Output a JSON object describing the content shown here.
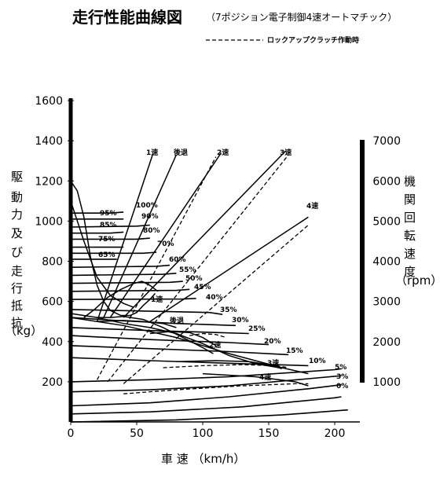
{
  "chart_data": {
    "type": "line",
    "title": "走行性能曲線図",
    "subtitle": "（7ポジション電子制御4速オートマチック）",
    "legend": {
      "dashed_label": "ロックアップクラッチ作動時",
      "position": "top-right"
    },
    "xlabel": "車 速 （km/h）",
    "ylabel_left": [
      "駆",
      "動",
      "力",
      "及",
      "び",
      "走",
      "行",
      "抵",
      "抗",
      "（kg）"
    ],
    "ylabel_right": [
      "機",
      "関",
      "回",
      "転",
      "速",
      "度",
      "（rpm）"
    ],
    "xlim": [
      0,
      220
    ],
    "ylim": [
      0,
      1650
    ],
    "x_ticks": [
      0,
      50,
      100,
      150,
      200
    ],
    "y_ticks_left": [
      200,
      400,
      600,
      800,
      1000,
      1200,
      1400,
      1600
    ],
    "y_ticks_right": [
      {
        "value": 1000,
        "at": 200
      },
      {
        "value": 2000,
        "at": 400
      },
      {
        "value": 3000,
        "at": 600
      },
      {
        "value": 4000,
        "at": 800
      },
      {
        "value": 5000,
        "at": 1000
      },
      {
        "value": 6000,
        "at": 1200
      },
      {
        "value": 7000,
        "at": 1400
      }
    ],
    "resistance": [
      {
        "name": "100%",
        "points": [
          [
            0,
            1040
          ],
          [
            30,
            1040
          ],
          [
            40,
            1045
          ]
        ]
      },
      {
        "name": "95%",
        "points": [
          [
            0,
            1010
          ],
          [
            30,
            1010
          ],
          [
            40,
            1010
          ]
        ]
      },
      {
        "name": "90%",
        "points": [
          [
            0,
            970
          ],
          [
            50,
            975
          ],
          [
            60,
            980
          ]
        ]
      },
      {
        "name": "85%",
        "points": [
          [
            0,
            940
          ],
          [
            30,
            940
          ],
          [
            40,
            945
          ]
        ]
      },
      {
        "name": "80%",
        "points": [
          [
            0,
            910
          ],
          [
            50,
            910
          ],
          [
            60,
            915
          ]
        ]
      },
      {
        "name": "75%",
        "points": [
          [
            0,
            870
          ],
          [
            30,
            870
          ],
          [
            40,
            870
          ]
        ]
      },
      {
        "name": "70%",
        "points": [
          [
            0,
            840
          ],
          [
            55,
            840
          ],
          [
            65,
            845
          ]
        ]
      },
      {
        "name": "65%",
        "points": [
          [
            0,
            810
          ],
          [
            25,
            810
          ],
          [
            35,
            810
          ]
        ]
      },
      {
        "name": "60%",
        "points": [
          [
            0,
            770
          ],
          [
            65,
            775
          ],
          [
            75,
            780
          ]
        ]
      },
      {
        "name": "55%",
        "points": [
          [
            0,
            730
          ],
          [
            70,
            735
          ],
          [
            80,
            740
          ]
        ]
      },
      {
        "name": "50%",
        "points": [
          [
            0,
            690
          ],
          [
            75,
            695
          ],
          [
            85,
            700
          ]
        ]
      },
      {
        "name": "45%",
        "points": [
          [
            0,
            650
          ],
          [
            80,
            655
          ],
          [
            90,
            660
          ]
        ]
      },
      {
        "name": "40%",
        "points": [
          [
            0,
            610
          ],
          [
            85,
            612
          ],
          [
            95,
            615
          ]
        ]
      },
      {
        "name": "35%",
        "points": [
          [
            0,
            560
          ],
          [
            105,
            545
          ],
          [
            115,
            535
          ]
        ]
      },
      {
        "name": "30%",
        "points": [
          [
            0,
            520
          ],
          [
            35,
            505
          ],
          [
            80,
            490
          ],
          [
            125,
            480
          ]
        ]
      },
      {
        "name": "25%",
        "points": [
          [
            0,
            470
          ],
          [
            60,
            455
          ],
          [
            110,
            445
          ],
          [
            135,
            440
          ]
        ]
      },
      {
        "name": "20%",
        "points": [
          [
            0,
            430
          ],
          [
            60,
            410
          ],
          [
            120,
            395
          ],
          [
            150,
            385
          ]
        ]
      },
      {
        "name": "15%",
        "points": [
          [
            0,
            380
          ],
          [
            60,
            365
          ],
          [
            120,
            350
          ],
          [
            165,
            335
          ]
        ]
      },
      {
        "name": "10%",
        "points": [
          [
            0,
            320
          ],
          [
            60,
            305
          ],
          [
            130,
            290
          ],
          [
            180,
            280
          ]
        ]
      },
      {
        "name": "5%",
        "points": [
          [
            0,
            200
          ],
          [
            60,
            210
          ],
          [
            120,
            225
          ],
          [
            200,
            260
          ],
          [
            205,
            265
          ]
        ]
      },
      {
        "name": "3%",
        "points": [
          [
            0,
            150
          ],
          [
            60,
            160
          ],
          [
            120,
            180
          ],
          [
            180,
            215
          ],
          [
            205,
            230
          ]
        ]
      },
      {
        "name": "0%",
        "points": [
          [
            0,
            80
          ],
          [
            60,
            95
          ],
          [
            120,
            125
          ],
          [
            180,
            165
          ],
          [
            205,
            185
          ]
        ]
      }
    ],
    "extra_curves": [
      [
        [
          0,
          40
        ],
        [
          60,
          50
        ],
        [
          130,
          75
        ],
        [
          200,
          120
        ],
        [
          205,
          125
        ]
      ],
      [
        [
          0,
          0
        ],
        [
          80,
          10
        ],
        [
          160,
          35
        ],
        [
          210,
          60
        ]
      ]
    ],
    "tractive": [
      {
        "name": "1速",
        "points": [
          [
            0,
            1200
          ],
          [
            5,
            1150
          ],
          [
            10,
            1020
          ],
          [
            15,
            820
          ],
          [
            20,
            680
          ],
          [
            25,
            600
          ],
          [
            30,
            555
          ],
          [
            38,
            530
          ],
          [
            45,
            530
          ],
          [
            50,
            545
          ],
          [
            55,
            580
          ],
          [
            60,
            610
          ],
          [
            64,
            640
          ]
        ]
      },
      {
        "name": "2速",
        "points": [
          [
            20,
            520
          ],
          [
            30,
            520
          ],
          [
            40,
            525
          ],
          [
            55,
            510
          ],
          [
            70,
            470
          ],
          [
            85,
            420
          ],
          [
            100,
            370
          ],
          [
            108,
            340
          ]
        ]
      },
      {
        "name": "3速",
        "points": [
          [
            0,
            540
          ],
          [
            20,
            520
          ],
          [
            40,
            490
          ],
          [
            60,
            470
          ],
          [
            80,
            440
          ],
          [
            100,
            390
          ],
          [
            120,
            330
          ],
          [
            140,
            290
          ],
          [
            158,
            270
          ]
        ]
      },
      {
        "name": "4速",
        "points": [
          [
            0,
            520
          ],
          [
            40,
            480
          ],
          [
            80,
            420
          ],
          [
            120,
            340
          ],
          [
            160,
            270
          ],
          [
            180,
            240
          ]
        ]
      },
      {
        "name": "後退",
        "points": [
          [
            0,
            1100
          ],
          [
            10,
            900
          ],
          [
            20,
            720
          ],
          [
            30,
            630
          ],
          [
            40,
            590
          ],
          [
            48,
            570
          ]
        ]
      },
      {
        "name": "1速-rpm",
        "points": [
          [
            10,
            520
          ],
          [
            18,
            560
          ],
          [
            28,
            620
          ],
          [
            38,
            660
          ],
          [
            48,
            690
          ],
          [
            54,
            700
          ],
          [
            60,
            680
          ],
          [
            66,
            650
          ]
        ]
      },
      {
        "name": "後退-rpm",
        "points": [
          [
            20,
            500
          ],
          [
            40,
            505
          ],
          [
            55,
            500
          ],
          [
            70,
            490
          ],
          [
            80,
            470
          ]
        ]
      },
      {
        "name": "2速-rpm",
        "points": [
          [
            60,
            440
          ],
          [
            75,
            450
          ],
          [
            90,
            445
          ],
          [
            100,
            420
          ],
          [
            110,
            380
          ]
        ]
      },
      {
        "name": "3速-rpm",
        "points": [
          [
            80,
            300
          ],
          [
            110,
            305
          ],
          [
            135,
            300
          ],
          [
            150,
            285
          ],
          [
            160,
            265
          ]
        ]
      },
      {
        "name": "4速-rpm",
        "points": [
          [
            100,
            240
          ],
          [
            140,
            225
          ],
          [
            170,
            200
          ],
          [
            180,
            180
          ]
        ]
      }
    ],
    "rpm_lines": [
      {
        "name": "1速",
        "solid": [
          [
            20,
            500
          ],
          [
            62,
            1330
          ]
        ],
        "dashed": null
      },
      {
        "name": "後退",
        "solid": [
          [
            25,
            520
          ],
          [
            80,
            1330
          ]
        ],
        "dashed": null
      },
      {
        "name": "2速",
        "solid": [
          [
            30,
            520
          ],
          [
            114,
            1340
          ]
        ],
        "dashed": [
          [
            20,
            210
          ],
          [
            110,
            1320
          ]
        ]
      },
      {
        "name": "3速",
        "solid": [
          [
            40,
            520
          ],
          [
            163,
            1350
          ]
        ],
        "dashed": [
          [
            28,
            200
          ],
          [
            165,
            1330
          ]
        ]
      },
      {
        "name": "4速",
        "solid": [
          [
            60,
            500
          ],
          [
            180,
            1020
          ]
        ],
        "dashed": [
          [
            40,
            190
          ],
          [
            180,
            980
          ]
        ]
      }
    ],
    "dashed_curves": [
      [
        [
          90,
          430
        ],
        [
          100,
          440
        ],
        [
          110,
          435
        ],
        [
          118,
          420
        ]
      ],
      [
        [
          70,
          270
        ],
        [
          100,
          280
        ],
        [
          130,
          285
        ],
        [
          155,
          280
        ],
        [
          165,
          270
        ]
      ],
      [
        [
          40,
          140
        ],
        [
          80,
          160
        ],
        [
          130,
          180
        ],
        [
          170,
          190
        ],
        [
          180,
          190
        ]
      ]
    ],
    "resistance_labels": [
      "100%",
      "95%",
      "90%",
      "85%",
      "80%",
      "75%",
      "70%",
      "65%",
      "60%",
      "55%",
      "50%",
      "45%",
      "40%",
      "35%",
      "30%",
      "25%",
      "20%",
      "15%",
      "10%",
      "5%",
      "3%",
      "0%"
    ],
    "gear_labels_top": [
      "1速",
      "後退",
      "2速",
      "3速",
      "4速"
    ],
    "gear_labels_mid": [
      "1速",
      "後退",
      "2速",
      "3速",
      "4速"
    ]
  }
}
